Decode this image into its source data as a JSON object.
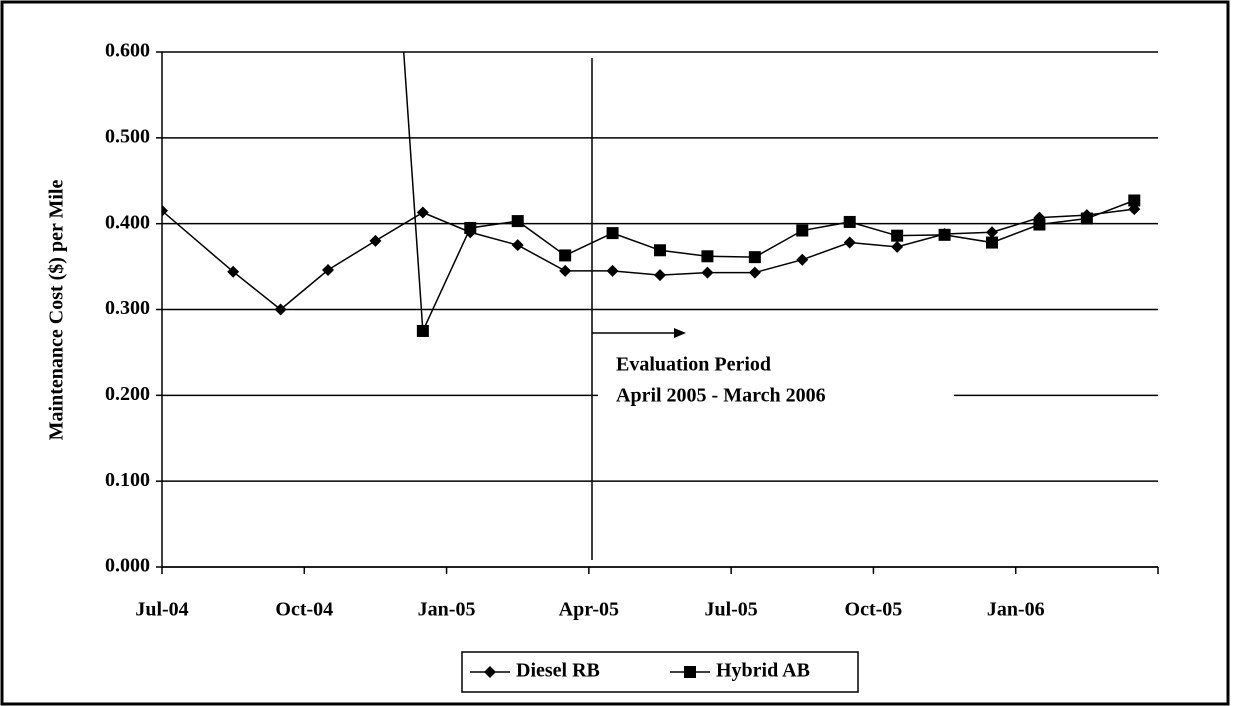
{
  "chart_data": {
    "type": "line",
    "y_label": "Maintenance Cost ($) per Mile",
    "annotations": [
      "Evaluation Period",
      "April 2005 - March 2006"
    ],
    "x": [
      0,
      1.5,
      2.5,
      3.5,
      4.5,
      5.5,
      6.5,
      7.5,
      8.5,
      9.5,
      10.5,
      11.5,
      12.5,
      13.5,
      14.5,
      15.5,
      16.5,
      17.5,
      18.5,
      19.5,
      20.5
    ],
    "series": [
      {
        "name": "Diesel RB",
        "color": "#000000",
        "marker": "diamond",
        "values": [
          0.415,
          0.344,
          0.3,
          0.346,
          0.38,
          0.413,
          0.39,
          0.375,
          0.345,
          0.345,
          0.34,
          0.343,
          0.343,
          0.358,
          0.378,
          0.373,
          0.388,
          0.39,
          0.407,
          0.41,
          0.417
        ]
      },
      {
        "name": "Hybrid AB",
        "color": "#000000",
        "marker": "square",
        "values": [
          null,
          null,
          null,
          null,
          1.08,
          0.275,
          0.395,
          0.403,
          0.363,
          0.389,
          0.369,
          0.362,
          0.361,
          0.392,
          0.402,
          0.386,
          0.387,
          0.378,
          0.399,
          0.406,
          0.427
        ]
      }
    ],
    "xlim": [
      0,
      21
    ],
    "xticks": [
      {
        "value": 0,
        "label": "Jul-04"
      },
      {
        "value": 3,
        "label": "Oct-04"
      },
      {
        "value": 6,
        "label": "Jan-05"
      },
      {
        "value": 9,
        "label": "Apr-05"
      },
      {
        "value": 12,
        "label": "Jul-05"
      },
      {
        "value": 15,
        "label": "Oct-05"
      },
      {
        "value": 18,
        "label": "Jan-06"
      }
    ],
    "ylim": [
      0,
      0.6
    ],
    "yticks": [
      {
        "value": 0,
        "label": "0.000"
      },
      {
        "value": 0.1,
        "label": "0.100"
      },
      {
        "value": 0.2,
        "label": "0.200"
      },
      {
        "value": 0.3,
        "label": "0.300"
      },
      {
        "value": 0.4,
        "label": "0.400"
      },
      {
        "value": 0.5,
        "label": "0.500"
      },
      {
        "value": 0.6,
        "label": "0.600"
      }
    ],
    "grid": true,
    "legend": "bottom"
  }
}
